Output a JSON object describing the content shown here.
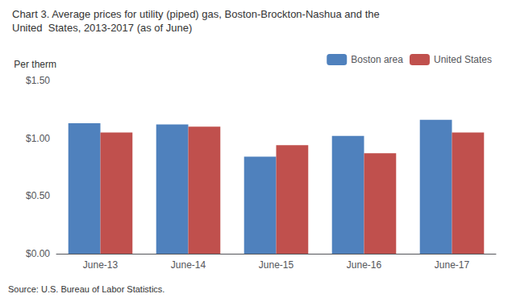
{
  "chart_data": {
    "type": "bar",
    "title": "Chart 3. Average prices for utility (piped) gas, Boston-Brockton-Nashua and the",
    "subtitle": "United  States, 2013-2017 (as of June)",
    "ylabel": "Per therm",
    "annotations": [
      "Source: U.S. Bureau of Labor Statistics."
    ],
    "categories": [
      "June-13",
      "June-14",
      "June-15",
      "June-16",
      "June-17"
    ],
    "series": [
      {
        "name": "Boston area",
        "color": "#4F81BD",
        "values": [
          1.13,
          1.12,
          0.84,
          1.02,
          1.16
        ]
      },
      {
        "name": "United States",
        "color": "#C0504D",
        "values": [
          1.05,
          1.1,
          0.94,
          0.87,
          1.05
        ]
      }
    ],
    "ylim": [
      0,
      1.5
    ],
    "yticks": [
      {
        "value": 0.0,
        "label": "$0.00"
      },
      {
        "value": 0.5,
        "label": "$0.50"
      },
      {
        "value": 1.0,
        "label": "$1.00"
      },
      {
        "value": 1.5,
        "label": "$1.50"
      }
    ],
    "grid": false,
    "legend": "upper right"
  }
}
